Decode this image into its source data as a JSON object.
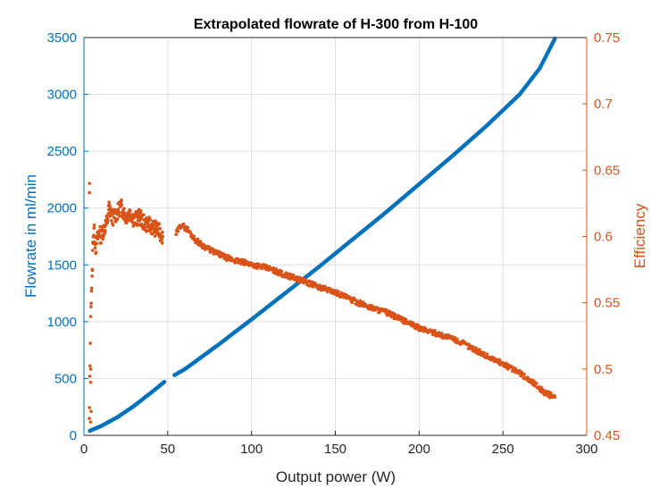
{
  "chart_data": {
    "type": "scatter",
    "title": "Extrapolated flowrate of H-300 from H-100",
    "xlabel": "Output power (W)",
    "ylabel_left": "Flowrate in ml/min",
    "ylabel_right": "Efficiency",
    "xlim": [
      0,
      300
    ],
    "ylim_left": [
      0,
      3500
    ],
    "ylim_right": [
      0.45,
      0.75
    ],
    "x_ticks": [
      "0",
      "50",
      "100",
      "150",
      "200",
      "250",
      "300"
    ],
    "y_ticks_left": [
      "0",
      "500",
      "1000",
      "1500",
      "2000",
      "2500",
      "3000",
      "3500"
    ],
    "y_ticks_right": [
      "0.45",
      "0.5",
      "0.55",
      "0.6",
      "0.65",
      "0.7",
      "0.75"
    ],
    "grid": true,
    "colors": {
      "left_axis": "#0072BD",
      "right_axis": "#D95319",
      "grid": "#dfdfdf",
      "axes": "#262626"
    },
    "series": [
      {
        "axis": "left",
        "color": "#0072BD",
        "points": [
          [
            3.5,
            40
          ],
          [
            10,
            80
          ],
          [
            20,
            160
          ],
          [
            30,
            260
          ],
          [
            40,
            375
          ],
          [
            48,
            470
          ],
          [
            54,
            530
          ],
          [
            60,
            580
          ],
          [
            80,
            795
          ],
          [
            100,
            1020
          ],
          [
            120,
            1250
          ],
          [
            140,
            1480
          ],
          [
            160,
            1720
          ],
          [
            180,
            1960
          ],
          [
            200,
            2210
          ],
          [
            220,
            2460
          ],
          [
            240,
            2720
          ],
          [
            260,
            3000
          ],
          [
            272,
            3230
          ],
          [
            281,
            3490
          ]
        ]
      },
      {
        "axis": "right",
        "color": "#D95319",
        "points": [
          [
            3.2,
            0.46
          ],
          [
            3.3,
            0.47
          ],
          [
            3.5,
            0.49
          ],
          [
            3.6,
            0.502
          ],
          [
            3.8,
            0.524
          ],
          [
            4,
            0.535
          ],
          [
            4.2,
            0.55
          ],
          [
            4.5,
            0.56
          ],
          [
            5,
            0.57
          ],
          [
            5,
            0.58
          ],
          [
            5.5,
            0.6
          ],
          [
            6,
            0.605
          ],
          [
            7,
            0.592
          ],
          [
            8,
            0.598
          ],
          [
            9,
            0.605
          ],
          [
            10,
            0.6
          ],
          [
            12,
            0.606
          ],
          [
            14,
            0.612
          ],
          [
            15,
            0.622
          ],
          [
            17,
            0.614
          ],
          [
            20,
            0.618
          ],
          [
            22,
            0.623
          ],
          [
            25,
            0.615
          ],
          [
            28,
            0.618
          ],
          [
            30,
            0.612
          ],
          [
            33,
            0.615
          ],
          [
            36,
            0.61
          ],
          [
            40,
            0.608
          ],
          [
            44,
            0.605
          ],
          [
            47,
            0.6
          ],
          [
            55,
            0.602
          ],
          [
            58,
            0.609
          ],
          [
            62,
            0.605
          ],
          [
            66,
            0.598
          ],
          [
            70,
            0.594
          ],
          [
            75,
            0.59
          ],
          [
            80,
            0.587
          ],
          [
            85,
            0.584
          ],
          [
            90,
            0.582
          ],
          [
            100,
            0.579
          ],
          [
            110,
            0.576
          ],
          [
            120,
            0.571
          ],
          [
            130,
            0.567
          ],
          [
            140,
            0.562
          ],
          [
            150,
            0.558
          ],
          [
            160,
            0.552
          ],
          [
            170,
            0.547
          ],
          [
            180,
            0.543
          ],
          [
            190,
            0.537
          ],
          [
            200,
            0.531
          ],
          [
            210,
            0.527
          ],
          [
            220,
            0.523
          ],
          [
            230,
            0.517
          ],
          [
            240,
            0.51
          ],
          [
            250,
            0.504
          ],
          [
            260,
            0.497
          ],
          [
            270,
            0.488
          ],
          [
            275,
            0.482
          ],
          [
            281,
            0.479
          ]
        ],
        "outliers": [
          [
            3.3,
            0.64
          ],
          [
            3.3,
            0.633
          ],
          [
            4,
            0.5
          ],
          [
            4,
            0.49
          ],
          [
            4.3,
            0.468
          ],
          [
            4,
            0.46
          ],
          [
            6,
            0.6
          ]
        ]
      }
    ]
  }
}
